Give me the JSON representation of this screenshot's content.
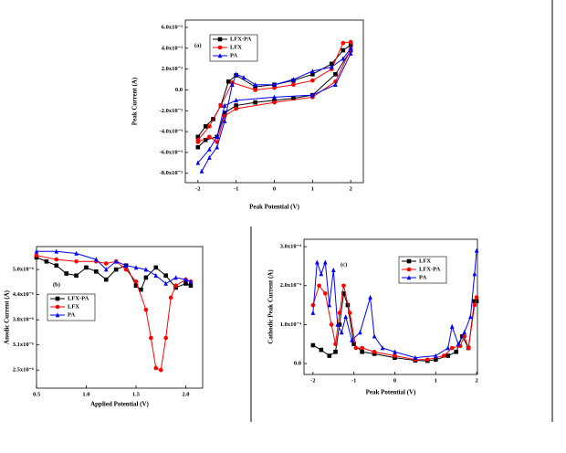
{
  "chart_data": [
    {
      "type": "line",
      "annotation": "(a)",
      "xlabel": "Peak Potential (V)",
      "ylabel": "Peak Current (A)",
      "xlim": [
        -2.33,
        2.33
      ],
      "ylim": [
        -0.0089,
        0.0067
      ],
      "xticks": [
        -2,
        -1,
        0,
        1,
        2
      ],
      "yticks": [
        {
          "value": 0.006,
          "label": "6.0x10⁻³"
        },
        {
          "value": 0.004,
          "label": "4.0x10⁻³"
        },
        {
          "value": 0.002,
          "label": "2.0x10⁻³"
        },
        {
          "value": 0,
          "label": "0.0"
        },
        {
          "value": -0.002,
          "label": "-2.0x10⁻³"
        },
        {
          "value": -0.004,
          "label": "-4.0x10⁻³"
        },
        {
          "value": -0.006,
          "label": "-6.0x10⁻³"
        },
        {
          "value": -0.008,
          "label": "-8.0x10⁻³"
        }
      ],
      "legend": "upper left",
      "series": [
        {
          "name": "LFX-PA",
          "color": "#000000",
          "marker": "square",
          "x": [
            -2,
            -1.8,
            -1.6,
            -1.4,
            -1.2,
            -1,
            -0.5,
            0,
            0.5,
            1,
            1.5,
            1.8,
            2,
            2,
            1.6,
            1,
            0.5,
            0,
            -0.5,
            -1,
            -1.3,
            -1.5,
            -1.8,
            -2
          ],
          "values": [
            -0.0045,
            -0.0035,
            -0.0028,
            -0.0015,
            0.0008,
            0.0014,
            0.0003,
            0.0005,
            0.0009,
            0.0015,
            0.0025,
            0.0038,
            0.0043,
            0.0038,
            0.0015,
            -0.0005,
            -0.0008,
            -0.001,
            -0.0012,
            -0.0015,
            -0.0022,
            -0.0045,
            -0.0048,
            -0.0055
          ]
        },
        {
          "name": "LFX",
          "color": "#ff0000",
          "marker": "circle",
          "x": [
            -2,
            -1.7,
            -1.4,
            -1.1,
            -0.5,
            0,
            0.5,
            1,
            1.5,
            1.8,
            2,
            2,
            1.6,
            1,
            0,
            -1,
            -1.3,
            -1.5,
            -1.7,
            -2
          ],
          "values": [
            -0.0048,
            -0.0035,
            -0.0015,
            0.0007,
            0,
            0.0002,
            0.0005,
            0.0009,
            0.002,
            0.0045,
            0.0046,
            0.0039,
            0.0008,
            -0.0007,
            -0.0012,
            -0.0018,
            -0.0025,
            -0.005,
            -0.0045,
            -0.005
          ]
        },
        {
          "name": "PA",
          "color": "#0000ff",
          "marker": "triangle",
          "x": [
            -1.9,
            -1.7,
            -1.5,
            -1.3,
            -1.1,
            -1,
            -0.8,
            -0.5,
            0,
            0.5,
            1,
            1.5,
            1.8,
            2,
            2,
            1.6,
            1,
            0,
            -1,
            -1.3,
            -1.5,
            -1.7,
            -2
          ],
          "values": [
            -0.0078,
            -0.0065,
            -0.0055,
            -0.003,
            0.0005,
            0.0015,
            0.0012,
            0.0005,
            0.0005,
            0.001,
            0.0018,
            0.0022,
            0.003,
            0.004,
            0.0035,
            0.0005,
            -0.0005,
            -0.0007,
            -0.001,
            -0.0015,
            -0.0045,
            -0.0057,
            -0.007
          ]
        }
      ]
    },
    {
      "type": "line",
      "annotation": "(b)",
      "xlabel": "Applied Potential (V)",
      "ylabel": "Anodic Current (A)",
      "xlim": [
        0.5,
        2.17
      ],
      "ylim": [
        2.05e-06,
        5.57e-06
      ],
      "xticks": [
        0.5,
        {
          "value": 1,
          "label": "1.0"
        },
        1.5,
        {
          "value": 2,
          "label": "2.0"
        }
      ],
      "yticks": [
        {
          "value": 5e-06,
          "label": "5.0x10⁻⁶"
        },
        {
          "value": 4.375e-06,
          "label": "4.4x10⁻⁶"
        },
        {
          "value": 3.75e-06,
          "label": "3.8x10⁻⁶"
        },
        {
          "value": 3.125e-06,
          "label": "3.1x10⁻⁶"
        },
        {
          "value": 2.5e-06,
          "label": "2.5x10⁻⁶"
        }
      ],
      "legend": "center left",
      "series": [
        {
          "name": "LFX-PA",
          "color": "#000000",
          "marker": "square",
          "x": [
            0.5,
            0.6,
            0.7,
            0.8,
            0.9,
            1.0,
            1.1,
            1.2,
            1.3,
            1.4,
            1.5,
            1.55,
            1.6,
            1.7,
            1.8,
            1.9,
            2.0,
            2.05
          ],
          "values": [
            5.3e-06,
            5.2e-06,
            5.1e-06,
            4.9e-06,
            4.85e-06,
            5.05e-06,
            4.95e-06,
            4.75e-06,
            5e-06,
            5.1e-06,
            4.6e-06,
            4.5e-06,
            4.8e-06,
            5.05e-06,
            4.85e-06,
            4.55e-06,
            4.65e-06,
            4.6e-06
          ]
        },
        {
          "name": "LFX",
          "color": "#ff0000",
          "marker": "circle",
          "x": [
            0.5,
            0.7,
            0.9,
            1.1,
            1.2,
            1.3,
            1.4,
            1.5,
            1.6,
            1.65,
            1.7,
            1.75,
            1.8,
            1.85,
            1.9,
            2.0,
            2.05
          ],
          "values": [
            5.35e-06,
            5.25e-06,
            5.2e-06,
            5.2e-06,
            5.15e-06,
            5.2e-06,
            5e-06,
            4.7e-06,
            4e-06,
            3.3e-06,
            2.55e-06,
            2.5e-06,
            3.3e-06,
            4.3e-06,
            4.6e-06,
            4.75e-06,
            4.7e-06
          ]
        },
        {
          "name": "PA",
          "color": "#0000ff",
          "marker": "triangle",
          "x": [
            0.5,
            0.7,
            0.9,
            1.1,
            1.2,
            1.3,
            1.4,
            1.5,
            1.6,
            1.7,
            1.8,
            1.9,
            2.0,
            2.05
          ],
          "values": [
            5.45e-06,
            5.45e-06,
            5.4e-06,
            5.25e-06,
            5e-06,
            5.2e-06,
            5.1e-06,
            5.05e-06,
            5e-06,
            4.85e-06,
            4.65e-06,
            4.8e-06,
            4.75e-06,
            4.7e-06
          ]
        }
      ]
    },
    {
      "type": "line",
      "annotation": "(c)",
      "xlabel": "Peak Potential (V)",
      "ylabel": "Cathodic Peak Current (A)",
      "xlim": [
        -2.22,
        2.02
      ],
      "ylim": [
        -2.8e-05,
        0.000319
      ],
      "xticks": [
        -2,
        -1,
        0,
        1,
        2
      ],
      "yticks": [
        {
          "value": 0,
          "label": "0.0"
        },
        {
          "value": 0.0001,
          "label": "1.0x10⁻⁴"
        },
        {
          "value": 0.0002,
          "label": "2.0x10⁻⁴"
        },
        {
          "value": 0.0003,
          "label": "3.0x10⁻⁴"
        }
      ],
      "legend": "upper center",
      "series": [
        {
          "name": "LFX",
          "color": "#000000",
          "marker": "square",
          "x": [
            -2,
            -1.8,
            -1.6,
            -1.45,
            -1.35,
            -1.25,
            -1.15,
            -1.0,
            -0.8,
            -0.5,
            0,
            0.5,
            0.8,
            1.0,
            1.3,
            1.5,
            1.65,
            1.8,
            1.95,
            2
          ],
          "values": [
            4.7e-05,
            3.5e-05,
            2e-05,
            3e-05,
            0.0001,
            0.00018,
            0.00015,
            5e-05,
            3e-05,
            2.5e-05,
            1.5e-05,
            8e-06,
            7e-06,
            1e-05,
            2e-05,
            3e-05,
            7e-05,
            4e-05,
            0.00016,
            0.00016
          ]
        },
        {
          "name": "LFX-PA",
          "color": "#ff0000",
          "marker": "circle",
          "x": [
            -2,
            -1.85,
            -1.7,
            -1.55,
            -1.45,
            -1.35,
            -1.25,
            -1.1,
            -0.95,
            -0.8,
            -0.5,
            0,
            0.5,
            0.8,
            1.2,
            1.4,
            1.6,
            1.7,
            1.8,
            1.95,
            2
          ],
          "values": [
            0.00015,
            0.0002,
            0.00018,
            0.0001,
            5e-05,
            0.00013,
            0.0002,
            0.00013,
            4e-05,
            4e-05,
            3e-05,
            2e-05,
            1e-05,
            1e-05,
            2e-05,
            4e-05,
            4.5e-05,
            7e-05,
            4e-05,
            0.00015,
            0.00017
          ]
        },
        {
          "name": "PA",
          "color": "#0000ff",
          "marker": "triangle",
          "x": [
            -2,
            -1.9,
            -1.8,
            -1.7,
            -1.6,
            -1.5,
            -1.4,
            -1.3,
            -1.2,
            -1.05,
            -0.85,
            -0.6,
            -0.5,
            -0.3,
            0,
            0.5,
            1.0,
            1.3,
            1.4,
            1.55,
            1.7,
            1.85,
            1.95,
            2
          ],
          "values": [
            0.00013,
            0.00026,
            0.00023,
            0.00026,
            0.00015,
            0.00024,
            0.0001,
            8e-05,
            0.00012,
            6e-05,
            8e-05,
            0.00017,
            7e-05,
            4e-05,
            3e-05,
            1.5e-05,
            2e-05,
            4e-05,
            9.5e-05,
            5e-05,
            8e-05,
            0.00012,
            0.00023,
            0.00029
          ]
        }
      ]
    }
  ]
}
